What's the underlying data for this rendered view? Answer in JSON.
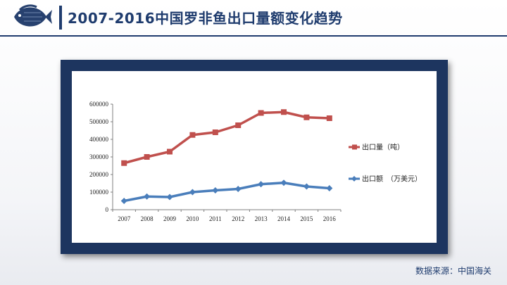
{
  "header": {
    "title": "2007-2016中国罗非鱼出口量额变化趋势"
  },
  "footer": {
    "source": "数据来源：中国海关"
  },
  "colors": {
    "navy": "#1f3c6e",
    "frame": "#1d355f",
    "series_red": "#c0504d",
    "series_blue": "#4a7ebb"
  },
  "chart_data": {
    "type": "line",
    "x": [
      "2007",
      "2008",
      "2009",
      "2010",
      "2011",
      "2012",
      "2013",
      "2014",
      "2015",
      "2016"
    ],
    "yticks": [
      "0",
      "100000",
      "200000",
      "300000",
      "400000",
      "500000",
      "600000"
    ],
    "ylim": [
      0,
      600000
    ],
    "grid": false,
    "legend_position": "right",
    "series": [
      {
        "name": "出口量（吨）",
        "color": "#c0504d",
        "marker": "square",
        "values": [
          265000,
          300000,
          330000,
          425000,
          440000,
          480000,
          550000,
          555000,
          525000,
          520000
        ]
      },
      {
        "name": "出口额　（万美元）",
        "color": "#4a7ebb",
        "marker": "diamond",
        "values": [
          50000,
          75000,
          72000,
          100000,
          110000,
          118000,
          145000,
          153000,
          132000,
          122000
        ]
      }
    ]
  }
}
